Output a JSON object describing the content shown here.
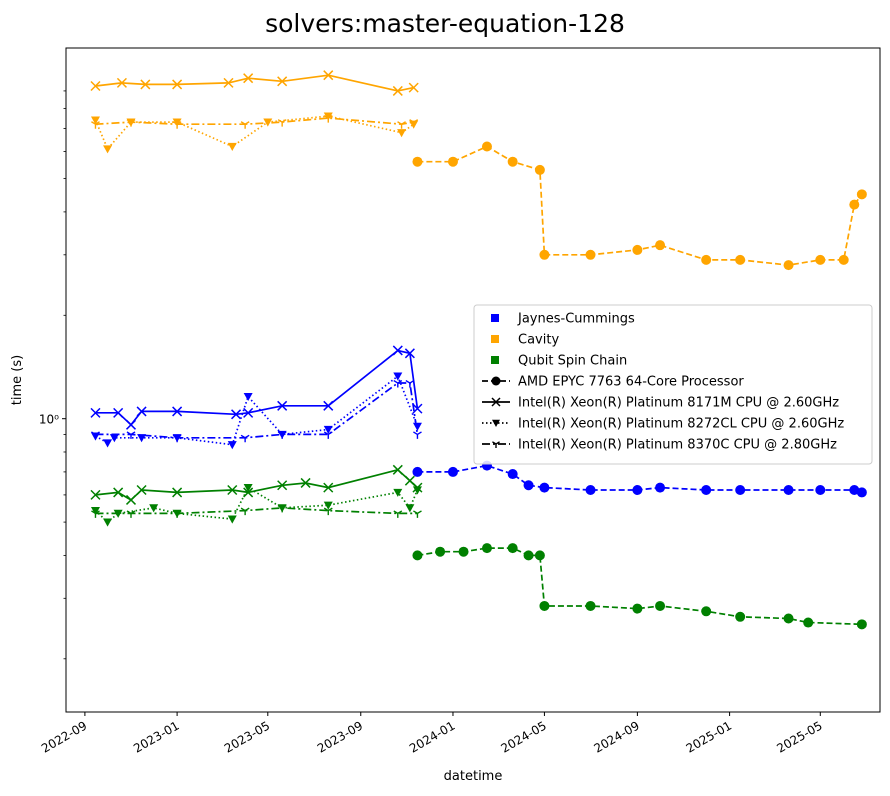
{
  "chart_data": {
    "type": "line",
    "title": "solvers:master-equation-128",
    "xlabel": "datetime",
    "ylabel": "time (s)",
    "yscale": "log",
    "ylim": [
      0.14,
      12
    ],
    "xlim": [
      "2022-08-07",
      "2025-07-19"
    ],
    "grid": false,
    "legend_position": "center-right",
    "x_ticks": [
      "2022-09",
      "2023-01",
      "2023-05",
      "2023-09",
      "2024-01",
      "2024-05",
      "2024-09",
      "2025-01",
      "2025-05"
    ],
    "y_ticks": [
      {
        "value": 1,
        "label": "10⁰"
      }
    ],
    "legend": {
      "color_entries": [
        {
          "label": "Jaynes-Cummings",
          "color": "#0000ff"
        },
        {
          "label": "Cavity",
          "color": "#ffa500"
        },
        {
          "label": "Qubit Spin Chain",
          "color": "#008000"
        }
      ],
      "style_entries": [
        {
          "label": "AMD EPYC 7763 64-Core Processor",
          "dash": "dashed",
          "marker": "circle"
        },
        {
          "label": "Intel(R) Xeon(R) Platinum 8171M CPU @ 2.60GHz",
          "dash": "solid",
          "marker": "x"
        },
        {
          "label": "Intel(R) Xeon(R) Platinum 8272CL CPU @ 2.60GHz",
          "dash": "dotted",
          "marker": "triangle-down"
        },
        {
          "label": "Intel(R) Xeon(R) Platinum 8370C CPU @ 2.80GHz",
          "dash": "dashdot",
          "marker": "tri-down"
        }
      ]
    },
    "series": [
      {
        "benchmark": "Cavity",
        "color": "#ffa500",
        "cpu": "Intel(R) Xeon(R) Platinum 8171M CPU @ 2.60GHz",
        "dash": "solid",
        "marker": "x",
        "points": [
          [
            "2022-09-15",
            9.3
          ],
          [
            "2022-10-20",
            9.5
          ],
          [
            "2022-11-20",
            9.4
          ],
          [
            "2023-01-01",
            9.4
          ],
          [
            "2023-03-10",
            9.5
          ],
          [
            "2023-04-05",
            9.8
          ],
          [
            "2023-05-20",
            9.6
          ],
          [
            "2023-07-20",
            10.0
          ],
          [
            "2023-10-20",
            9.0
          ],
          [
            "2023-11-10",
            9.2
          ]
        ]
      },
      {
        "benchmark": "Cavity",
        "color": "#ffa500",
        "cpu": "Intel(R) Xeon(R) Platinum 8272CL CPU @ 2.60GHz",
        "dash": "dotted",
        "marker": "triangle-down",
        "points": [
          [
            "2022-09-15",
            7.4
          ],
          [
            "2022-10-01",
            6.1
          ],
          [
            "2022-11-01",
            7.3
          ],
          [
            "2023-01-01",
            7.3
          ],
          [
            "2023-03-15",
            6.2
          ],
          [
            "2023-05-01",
            7.3
          ],
          [
            "2023-07-20",
            7.6
          ],
          [
            "2023-10-25",
            6.8
          ],
          [
            "2023-11-10",
            7.2
          ]
        ]
      },
      {
        "benchmark": "Cavity",
        "color": "#ffa500",
        "cpu": "Intel(R) Xeon(R) Platinum 8370C CPU @ 2.80GHz",
        "dash": "dashdot",
        "marker": "tri-down",
        "points": [
          [
            "2022-09-15",
            7.2
          ],
          [
            "2022-11-01",
            7.3
          ],
          [
            "2023-01-01",
            7.2
          ],
          [
            "2023-04-01",
            7.2
          ],
          [
            "2023-05-20",
            7.3
          ],
          [
            "2023-07-20",
            7.5
          ],
          [
            "2023-10-25",
            7.2
          ],
          [
            "2023-11-10",
            7.3
          ]
        ]
      },
      {
        "benchmark": "Cavity",
        "color": "#ffa500",
        "cpu": "AMD EPYC 7763 64-Core Processor",
        "dash": "dashed",
        "marker": "circle",
        "points": [
          [
            "2023-11-15",
            5.6
          ],
          [
            "2024-01-01",
            5.6
          ],
          [
            "2024-02-15",
            6.2
          ],
          [
            "2024-03-20",
            5.6
          ],
          [
            "2024-04-25",
            5.3
          ],
          [
            "2024-05-01",
            3.0
          ],
          [
            "2024-07-01",
            3.0
          ],
          [
            "2024-09-01",
            3.1
          ],
          [
            "2024-10-01",
            3.2
          ],
          [
            "2024-12-01",
            2.9
          ],
          [
            "2025-01-15",
            2.9
          ],
          [
            "2025-03-20",
            2.8
          ],
          [
            "2025-05-01",
            2.9
          ],
          [
            "2025-06-01",
            2.9
          ],
          [
            "2025-06-15",
            4.2
          ],
          [
            "2025-06-25",
            4.5
          ]
        ]
      },
      {
        "benchmark": "Jaynes-Cummings",
        "color": "#0000ff",
        "cpu": "Intel(R) Xeon(R) Platinum 8171M CPU @ 2.60GHz",
        "dash": "solid",
        "marker": "x",
        "points": [
          [
            "2022-09-15",
            1.04
          ],
          [
            "2022-10-15",
            1.04
          ],
          [
            "2022-11-01",
            0.96
          ],
          [
            "2022-11-15",
            1.05
          ],
          [
            "2023-01-01",
            1.05
          ],
          [
            "2023-03-20",
            1.03
          ],
          [
            "2023-04-05",
            1.04
          ],
          [
            "2023-05-20",
            1.09
          ],
          [
            "2023-07-20",
            1.09
          ],
          [
            "2023-10-20",
            1.58
          ],
          [
            "2023-11-05",
            1.55
          ],
          [
            "2023-11-15",
            1.07
          ]
        ]
      },
      {
        "benchmark": "Jaynes-Cummings",
        "color": "#0000ff",
        "cpu": "Intel(R) Xeon(R) Platinum 8272CL CPU @ 2.60GHz",
        "dash": "dotted",
        "marker": "triangle-down",
        "points": [
          [
            "2022-09-15",
            0.89
          ],
          [
            "2022-10-01",
            0.85
          ],
          [
            "2022-10-10",
            0.88
          ],
          [
            "2022-11-15",
            0.88
          ],
          [
            "2023-01-01",
            0.88
          ],
          [
            "2023-03-15",
            0.84
          ],
          [
            "2023-04-05",
            1.16
          ],
          [
            "2023-05-20",
            0.9
          ],
          [
            "2023-07-20",
            0.93
          ],
          [
            "2023-10-20",
            1.33
          ],
          [
            "2023-11-15",
            0.95
          ]
        ]
      },
      {
        "benchmark": "Jaynes-Cummings",
        "color": "#0000ff",
        "cpu": "Intel(R) Xeon(R) Platinum 8370C CPU @ 2.80GHz",
        "dash": "dashdot",
        "marker": "tri-down",
        "points": [
          [
            "2022-09-15",
            0.9
          ],
          [
            "2022-11-01",
            0.9
          ],
          [
            "2023-01-01",
            0.88
          ],
          [
            "2023-04-01",
            0.88
          ],
          [
            "2023-05-20",
            0.9
          ],
          [
            "2023-07-20",
            0.9
          ],
          [
            "2023-10-20",
            1.27
          ],
          [
            "2023-11-05",
            1.27
          ],
          [
            "2023-11-15",
            0.9
          ]
        ]
      },
      {
        "benchmark": "Jaynes-Cummings",
        "color": "#0000ff",
        "cpu": "AMD EPYC 7763 64-Core Processor",
        "dash": "dashed",
        "marker": "circle",
        "points": [
          [
            "2023-11-15",
            0.7
          ],
          [
            "2024-01-01",
            0.7
          ],
          [
            "2024-02-15",
            0.73
          ],
          [
            "2024-03-20",
            0.69
          ],
          [
            "2024-04-10",
            0.64
          ],
          [
            "2024-05-01",
            0.63
          ],
          [
            "2024-07-01",
            0.62
          ],
          [
            "2024-09-01",
            0.62
          ],
          [
            "2024-10-01",
            0.63
          ],
          [
            "2024-12-01",
            0.62
          ],
          [
            "2025-01-15",
            0.62
          ],
          [
            "2025-03-20",
            0.62
          ],
          [
            "2025-05-01",
            0.62
          ],
          [
            "2025-06-15",
            0.62
          ],
          [
            "2025-06-25",
            0.61
          ]
        ]
      },
      {
        "benchmark": "Qubit Spin Chain",
        "color": "#008000",
        "cpu": "Intel(R) Xeon(R) Platinum 8171M CPU @ 2.60GHz",
        "dash": "solid",
        "marker": "x",
        "points": [
          [
            "2022-09-15",
            0.6
          ],
          [
            "2022-10-15",
            0.61
          ],
          [
            "2022-11-01",
            0.58
          ],
          [
            "2022-11-15",
            0.62
          ],
          [
            "2023-01-01",
            0.61
          ],
          [
            "2023-03-15",
            0.62
          ],
          [
            "2023-04-05",
            0.61
          ],
          [
            "2023-05-20",
            0.64
          ],
          [
            "2023-06-20",
            0.65
          ],
          [
            "2023-07-20",
            0.63
          ],
          [
            "2023-10-20",
            0.71
          ],
          [
            "2023-11-05",
            0.66
          ],
          [
            "2023-11-15",
            0.63
          ]
        ]
      },
      {
        "benchmark": "Qubit Spin Chain",
        "color": "#008000",
        "cpu": "Intel(R) Xeon(R) Platinum 8272CL CPU @ 2.60GHz",
        "dash": "dotted",
        "marker": "triangle-down",
        "points": [
          [
            "2022-09-15",
            0.54
          ],
          [
            "2022-10-01",
            0.5
          ],
          [
            "2022-10-15",
            0.53
          ],
          [
            "2022-12-01",
            0.55
          ],
          [
            "2023-01-01",
            0.53
          ],
          [
            "2023-03-15",
            0.51
          ],
          [
            "2023-04-05",
            0.63
          ],
          [
            "2023-05-20",
            0.55
          ],
          [
            "2023-07-20",
            0.56
          ],
          [
            "2023-10-20",
            0.61
          ],
          [
            "2023-11-05",
            0.55
          ],
          [
            "2023-11-15",
            0.62
          ]
        ]
      },
      {
        "benchmark": "Qubit Spin Chain",
        "color": "#008000",
        "cpu": "Intel(R) Xeon(R) Platinum 8370C CPU @ 2.80GHz",
        "dash": "dashdot",
        "marker": "tri-down",
        "points": [
          [
            "2022-09-15",
            0.53
          ],
          [
            "2022-11-01",
            0.53
          ],
          [
            "2023-01-01",
            0.53
          ],
          [
            "2023-04-01",
            0.54
          ],
          [
            "2023-05-20",
            0.55
          ],
          [
            "2023-07-20",
            0.54
          ],
          [
            "2023-10-20",
            0.53
          ],
          [
            "2023-11-15",
            0.53
          ]
        ]
      },
      {
        "benchmark": "Qubit Spin Chain",
        "color": "#008000",
        "cpu": "AMD EPYC 7763 64-Core Processor",
        "dash": "dashed",
        "marker": "circle",
        "points": [
          [
            "2023-11-15",
            0.4
          ],
          [
            "2023-12-15",
            0.41
          ],
          [
            "2024-01-15",
            0.41
          ],
          [
            "2024-02-15",
            0.42
          ],
          [
            "2024-03-20",
            0.42
          ],
          [
            "2024-04-10",
            0.4
          ],
          [
            "2024-04-25",
            0.4
          ],
          [
            "2024-05-01",
            0.285
          ],
          [
            "2024-07-01",
            0.285
          ],
          [
            "2024-09-01",
            0.28
          ],
          [
            "2024-10-01",
            0.285
          ],
          [
            "2024-12-01",
            0.275
          ],
          [
            "2025-01-15",
            0.265
          ],
          [
            "2025-03-20",
            0.262
          ],
          [
            "2025-04-15",
            0.255
          ],
          [
            "2025-06-25",
            0.252
          ]
        ]
      }
    ]
  }
}
